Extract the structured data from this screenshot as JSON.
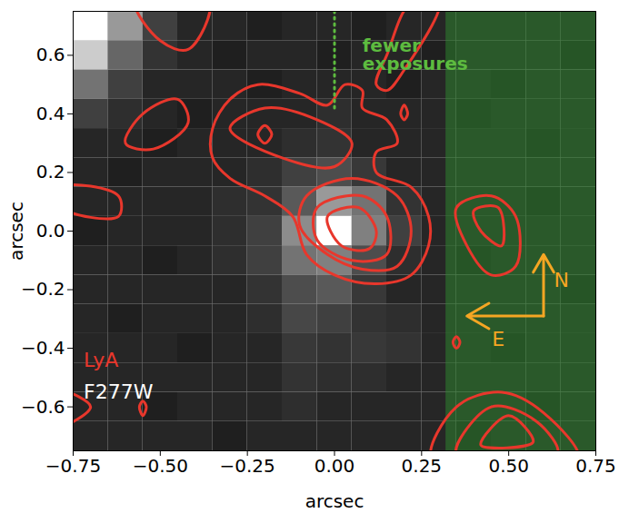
{
  "chart_data": {
    "type": "contour",
    "xlabel": "arcsec",
    "ylabel": "arcsec",
    "xlim": [
      -0.75,
      0.75
    ],
    "ylim": [
      -0.75,
      0.75
    ],
    "xticks": [
      {
        "value": -0.75,
        "label": "−0.75"
      },
      {
        "value": -0.5,
        "label": "−0.50"
      },
      {
        "value": -0.25,
        "label": "−0.25"
      },
      {
        "value": 0,
        "label": "0.00"
      },
      {
        "value": 0.25,
        "label": "0.25"
      },
      {
        "value": 0.5,
        "label": "0.50"
      },
      {
        "value": 0.75,
        "label": "0.75"
      }
    ],
    "yticks": [
      {
        "value": -0.6,
        "label": "−0.6"
      },
      {
        "value": -0.4,
        "label": "−0.4"
      },
      {
        "value": -0.2,
        "label": "−0.2"
      },
      {
        "value": 0,
        "label": "0.0"
      },
      {
        "value": 0.2,
        "label": "0.2"
      },
      {
        "value": 0.4,
        "label": "0.4"
      },
      {
        "value": 0.6,
        "label": "0.6"
      }
    ],
    "image": {
      "name": "F277W",
      "color": "#ffffff",
      "brightness_lim": [
        0,
        1
      ],
      "x": [
        -0.7,
        -0.6,
        -0.5,
        -0.4,
        -0.3,
        -0.2,
        -0.1,
        0,
        0.1,
        0.2,
        0.3,
        0.4,
        0.5,
        0.6,
        0.7
      ],
      "y": [
        0.7,
        0.6,
        0.5,
        0.4,
        0.3,
        0.2,
        0.1,
        0,
        -0.1,
        -0.2,
        -0.3,
        -0.4,
        -0.5,
        -0.6,
        -0.7
      ],
      "brightness": [
        [
          1,
          0.6,
          0.25,
          0.15,
          0.15,
          0.12,
          0.15,
          0.15,
          0.12,
          0.15,
          0.15,
          0.15,
          0.15,
          0.15,
          0.15
        ],
        [
          0.8,
          0.4,
          0.2,
          0.15,
          0.12,
          0.15,
          0.15,
          0.12,
          0.15,
          0.15,
          0.12,
          0.15,
          0.15,
          0.15,
          0.12
        ],
        [
          0.45,
          0.25,
          0.15,
          0.15,
          0.15,
          0.12,
          0.15,
          0.15,
          0.15,
          0.12,
          0.15,
          0.15,
          0.12,
          0.15,
          0.15
        ],
        [
          0.25,
          0.18,
          0.15,
          0.12,
          0.15,
          0.15,
          0.15,
          0.18,
          0.15,
          0.15,
          0.15,
          0.12,
          0.15,
          0.15,
          0.15
        ],
        [
          0.15,
          0.15,
          0.12,
          0.15,
          0.15,
          0.15,
          0.18,
          0.2,
          0.15,
          0.15,
          0.15,
          0.15,
          0.15,
          0.12,
          0.15
        ],
        [
          0.15,
          0.12,
          0.15,
          0.15,
          0.15,
          0.18,
          0.25,
          0.3,
          0.22,
          0.15,
          0.15,
          0.15,
          0.15,
          0.15,
          0.15
        ],
        [
          0.15,
          0.15,
          0.15,
          0.15,
          0.18,
          0.2,
          0.35,
          0.6,
          0.45,
          0.2,
          0.15,
          0.15,
          0.15,
          0.12,
          0.15
        ],
        [
          0.12,
          0.15,
          0.15,
          0.15,
          0.18,
          0.25,
          0.55,
          1,
          0.5,
          0.25,
          0.15,
          0.15,
          0.15,
          0.15,
          0.15
        ],
        [
          0.15,
          0.15,
          0.12,
          0.15,
          0.18,
          0.25,
          0.45,
          0.5,
          0.3,
          0.18,
          0.15,
          0.12,
          0.15,
          0.15,
          0.15
        ],
        [
          0.15,
          0.15,
          0.15,
          0.15,
          0.15,
          0.2,
          0.3,
          0.35,
          0.22,
          0.15,
          0.15,
          0.15,
          0.15,
          0.15,
          0.12
        ],
        [
          0.15,
          0.12,
          0.15,
          0.15,
          0.15,
          0.18,
          0.28,
          0.25,
          0.2,
          0.18,
          0.15,
          0.15,
          0.15,
          0.15,
          0.15
        ],
        [
          0.15,
          0.15,
          0.15,
          0.12,
          0.15,
          0.15,
          0.22,
          0.2,
          0.22,
          0.2,
          0.15,
          0.15,
          0.12,
          0.15,
          0.15
        ],
        [
          0.15,
          0.15,
          0.15,
          0.15,
          0.15,
          0.15,
          0.2,
          0.18,
          0.18,
          0.15,
          0.15,
          0.15,
          0.15,
          0.15,
          0.15
        ],
        [
          0.15,
          0.15,
          0.12,
          0.15,
          0.15,
          0.15,
          0.18,
          0.15,
          0.15,
          0.15,
          0.15,
          0.15,
          0.15,
          0.12,
          0.15
        ],
        [
          0.15,
          0.15,
          0.15,
          0.15,
          0.12,
          0.15,
          0.15,
          0.15,
          0.15,
          0.15,
          0.15,
          0.12,
          0.15,
          0.15,
          0.15
        ]
      ]
    },
    "contours": {
      "name": "LyA",
      "color": "#e8372c",
      "paths": [
        [
          [
            -0.35,
            0.35
          ],
          [
            -0.3,
            0.45
          ],
          [
            -0.22,
            0.5
          ],
          [
            -0.1,
            0.47
          ],
          [
            -0.02,
            0.43
          ],
          [
            0.03,
            0.5
          ],
          [
            0.08,
            0.48
          ],
          [
            0.08,
            0.42
          ],
          [
            0.15,
            0.38
          ],
          [
            0.18,
            0.3
          ],
          [
            0.12,
            0.27
          ],
          [
            0.12,
            0.2
          ],
          [
            0.22,
            0.15
          ],
          [
            0.27,
            0.05
          ],
          [
            0.27,
            -0.05
          ],
          [
            0.22,
            -0.15
          ],
          [
            0.12,
            -0.18
          ],
          [
            0.0,
            -0.15
          ],
          [
            -0.08,
            -0.08
          ],
          [
            -0.12,
            0.05
          ],
          [
            -0.2,
            0.12
          ],
          [
            -0.3,
            0.18
          ],
          [
            -0.35,
            0.25
          ]
        ],
        [
          [
            -0.3,
            0.35
          ],
          [
            -0.2,
            0.42
          ],
          [
            -0.05,
            0.38
          ],
          [
            0.05,
            0.3
          ],
          [
            0.0,
            0.22
          ],
          [
            -0.15,
            0.25
          ]
        ],
        [
          [
            -0.22,
            0.33
          ],
          [
            -0.2,
            0.36
          ],
          [
            -0.18,
            0.33
          ],
          [
            -0.2,
            0.3
          ]
        ],
        [
          [
            -0.08,
            0.12
          ],
          [
            0.05,
            0.18
          ],
          [
            0.18,
            0.12
          ],
          [
            0.22,
            0.0
          ],
          [
            0.18,
            -0.12
          ],
          [
            0.08,
            -0.13
          ],
          [
            -0.02,
            -0.08
          ],
          [
            -0.1,
            0.02
          ]
        ],
        [
          [
            -0.05,
            0.08
          ],
          [
            0.08,
            0.12
          ],
          [
            0.15,
            0.05
          ],
          [
            0.15,
            -0.08
          ],
          [
            0.05,
            -0.1
          ],
          [
            -0.05,
            -0.03
          ]
        ],
        [
          [
            -0.02,
            0.05
          ],
          [
            0.07,
            0.08
          ],
          [
            0.12,
            0.0
          ],
          [
            0.1,
            -0.06
          ],
          [
            0.02,
            -0.05
          ]
        ],
        [
          [
            0.12,
            0.5
          ],
          [
            0.15,
            0.6
          ],
          [
            0.22,
            0.78
          ],
          [
            0.3,
            0.78
          ],
          [
            0.2,
            0.55
          ],
          [
            0.15,
            0.48
          ]
        ],
        [
          [
            0.19,
            0.4
          ],
          [
            0.2,
            0.43
          ],
          [
            0.21,
            0.4
          ],
          [
            0.2,
            0.38
          ]
        ],
        [
          [
            -0.57,
            0.78
          ],
          [
            -0.5,
            0.65
          ],
          [
            -0.42,
            0.62
          ],
          [
            -0.36,
            0.78
          ]
        ],
        [
          [
            -0.6,
            0.3
          ],
          [
            -0.55,
            0.4
          ],
          [
            -0.45,
            0.45
          ],
          [
            -0.42,
            0.37
          ],
          [
            -0.52,
            0.28
          ]
        ],
        [
          [
            -0.78,
            0.15
          ],
          [
            -0.62,
            0.12
          ],
          [
            -0.62,
            0.05
          ],
          [
            -0.78,
            0.08
          ]
        ],
        [
          [
            0.35,
            0.08
          ],
          [
            0.45,
            0.12
          ],
          [
            0.52,
            0.05
          ],
          [
            0.52,
            -0.12
          ],
          [
            0.45,
            -0.15
          ],
          [
            0.38,
            -0.05
          ]
        ],
        [
          [
            0.4,
            0.07
          ],
          [
            0.47,
            0.08
          ],
          [
            0.48,
            -0.05
          ],
          [
            0.42,
            0.0
          ]
        ],
        [
          [
            0.28,
            -0.78
          ],
          [
            0.35,
            -0.6
          ],
          [
            0.48,
            -0.55
          ],
          [
            0.6,
            -0.62
          ],
          [
            0.7,
            -0.78
          ]
        ],
        [
          [
            0.35,
            -0.76
          ],
          [
            0.45,
            -0.6
          ],
          [
            0.58,
            -0.65
          ],
          [
            0.64,
            -0.76
          ]
        ],
        [
          [
            0.42,
            -0.73
          ],
          [
            0.5,
            -0.63
          ],
          [
            0.57,
            -0.72
          ]
        ],
        [
          [
            0.34,
            -0.38
          ],
          [
            0.35,
            -0.36
          ],
          [
            0.36,
            -0.38
          ],
          [
            0.35,
            -0.4
          ]
        ],
        [
          [
            -0.78,
            -0.55
          ],
          [
            -0.7,
            -0.6
          ],
          [
            -0.78,
            -0.66
          ]
        ],
        [
          [
            -0.56,
            -0.6
          ],
          [
            -0.55,
            -0.58
          ],
          [
            -0.54,
            -0.6
          ],
          [
            -0.55,
            -0.63
          ]
        ]
      ]
    },
    "shaded_region": {
      "label": "fewer exposures",
      "x": [
        0.32,
        0.75
      ],
      "color": "#2e8b2e"
    },
    "guide_line": {
      "x": 0,
      "y": [
        0.42,
        0.75
      ],
      "color": "#5dbb3f",
      "line_style": "dotted"
    },
    "compass": {
      "labels": [
        "N",
        "E"
      ],
      "color": "#f5a623"
    }
  }
}
